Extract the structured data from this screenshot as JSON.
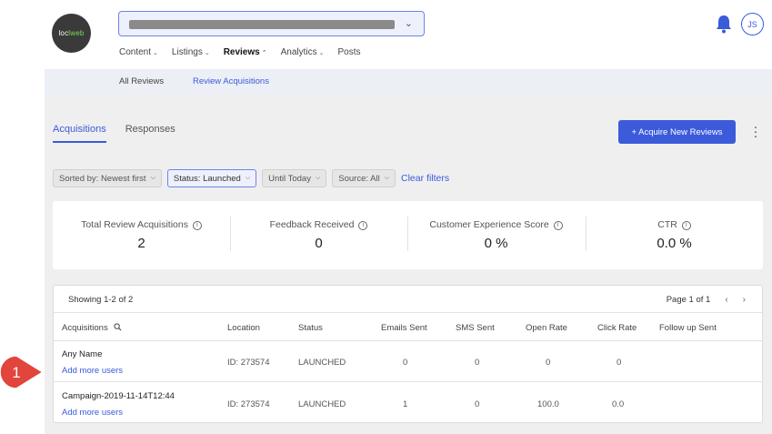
{
  "logo": {
    "text_a": "loc",
    "text_b": "lweb"
  },
  "nav": {
    "items": [
      {
        "label": "Content",
        "caret": "⌄"
      },
      {
        "label": "Listings",
        "caret": "⌄"
      },
      {
        "label": "Reviews",
        "caret": "⌃"
      },
      {
        "label": "Analytics",
        "caret": "⌄"
      },
      {
        "label": "Posts",
        "caret": ""
      }
    ],
    "active": "Reviews"
  },
  "user": {
    "initials": "JS"
  },
  "subnav": {
    "all_reviews": "All Reviews",
    "review_acquisitions": "Review Acquisitions"
  },
  "tabs": [
    {
      "label": "Acquisitions"
    },
    {
      "label": "Responses"
    }
  ],
  "acquire_button": "+ Acquire New Reviews",
  "filters": {
    "sorted_by": "Sorted by: Newest first",
    "status": "Status: Launched",
    "until": "Until Today",
    "source": "Source: All",
    "clear": "Clear filters"
  },
  "stats": [
    {
      "label": "Total Review Acquisitions",
      "value": "2"
    },
    {
      "label": "Feedback Received",
      "value": "0"
    },
    {
      "label": "Customer Experience Score",
      "value": "0 %"
    },
    {
      "label": "CTR",
      "value": "0.0 %"
    }
  ],
  "table": {
    "showing": "Showing 1-2 of 2",
    "page": "Page 1 of 1",
    "headers": [
      "Acquisitions",
      "Location",
      "Status",
      "Emails Sent",
      "SMS Sent",
      "Open Rate",
      "Click Rate",
      "Follow up Sent"
    ],
    "rows": [
      {
        "name": "Any Name",
        "link": "Add more users",
        "location": "ID: 273574",
        "status": "LAUNCHED",
        "emails": "0",
        "sms": "0",
        "open": "0",
        "click": "0",
        "followup": ""
      },
      {
        "name": "Campaign-2019-11-14T12:44",
        "link": "Add more users",
        "location": "ID: 273574",
        "status": "LAUNCHED",
        "emails": "1",
        "sms": "0",
        "open": "100.0",
        "click": "0.0",
        "followup": ""
      }
    ]
  },
  "callout": {
    "number": "1"
  },
  "colors": {
    "accent": "#3b5bdb",
    "callout": "#e2453c",
    "page_bg": "#efefef"
  }
}
